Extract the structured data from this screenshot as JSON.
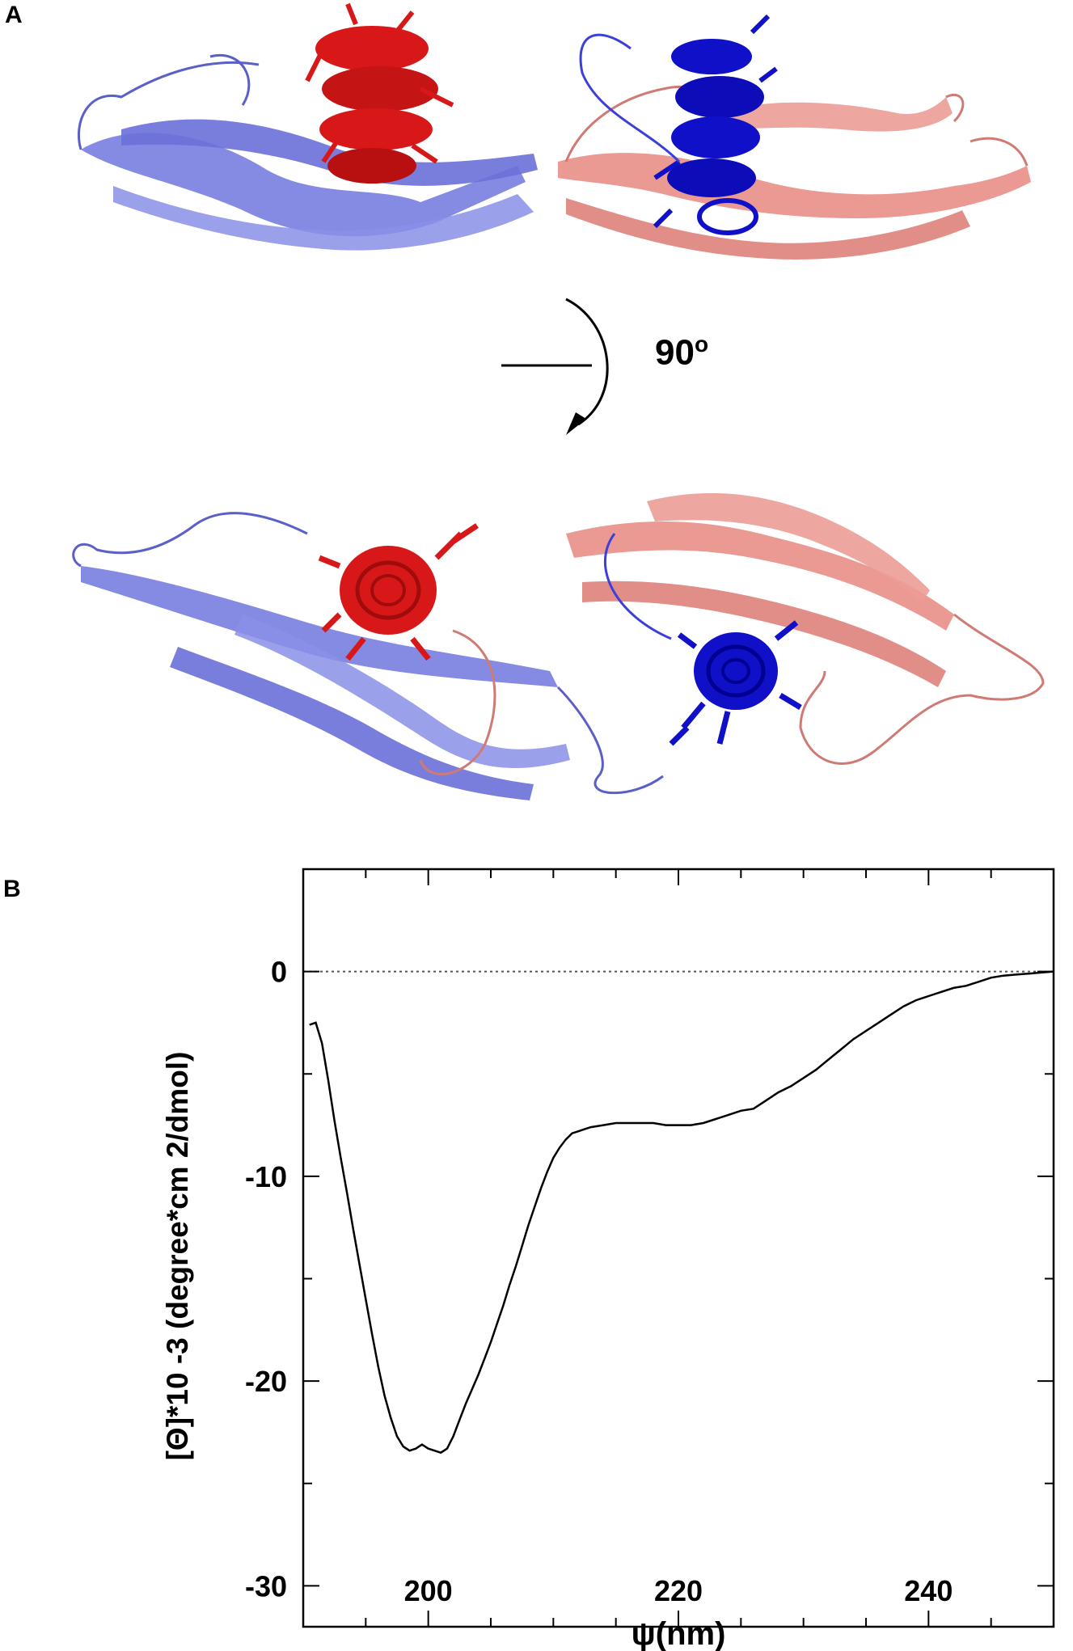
{
  "panels": {
    "a_label": "A",
    "b_label": "B"
  },
  "structure": {
    "rotation_value": "90",
    "rotation_unit": "o",
    "colors": {
      "chain1_sheet": "#7b80e0",
      "chain1_helix": "#d81818",
      "chain2_sheet": "#e8908a",
      "chain2_helix": "#1010c8"
    }
  },
  "chart_data": {
    "type": "line",
    "xlabel": "ψ(nm)",
    "ylabel": "[Θ]*10 -3 (degree*cm 2/dmol)",
    "xlim": [
      190,
      250
    ],
    "ylim": [
      -32,
      5
    ],
    "xticks": [
      200,
      220,
      240
    ],
    "yticks": [
      0,
      -10,
      -20,
      -30
    ],
    "zero_line": true,
    "grid": false,
    "line_color": "#000000",
    "series": [
      {
        "x": [
          190.5,
          191.0,
          191.5,
          192.0,
          192.5,
          193.0,
          193.5,
          194.0,
          194.5,
          195.0,
          195.5,
          196.0,
          196.5,
          197.0,
          197.5,
          198.0,
          198.5,
          199.0,
          199.5,
          200.0,
          200.5,
          201.0,
          201.5,
          202.0,
          202.5,
          203.0,
          203.5,
          204.0,
          204.5,
          205.0,
          205.5,
          206.0,
          206.5,
          207.0,
          207.5,
          208.0,
          208.5,
          209.0,
          209.5,
          210.0,
          210.5,
          211.0,
          211.5,
          212.0,
          212.5,
          213.0,
          214.0,
          215.0,
          216.0,
          217.0,
          218.0,
          219.0,
          220.0,
          221.0,
          222.0,
          223.0,
          224.0,
          225.0,
          226.0,
          227.0,
          228.0,
          229.0,
          230.0,
          231.0,
          232.0,
          233.0,
          234.0,
          235.0,
          236.0,
          237.0,
          238.0,
          239.0,
          240.0,
          241.0,
          242.0,
          243.0,
          244.0,
          245.0,
          246.0,
          247.0,
          248.0,
          249.0,
          250.0
        ],
        "y": [
          -2.6,
          -2.5,
          -3.5,
          -5.3,
          -7.3,
          -9.1,
          -10.8,
          -12.6,
          -14.3,
          -16.0,
          -17.7,
          -19.3,
          -20.7,
          -21.8,
          -22.7,
          -23.2,
          -23.4,
          -23.3,
          -23.1,
          -23.3,
          -23.4,
          -23.5,
          -23.3,
          -22.7,
          -21.9,
          -21.1,
          -20.4,
          -19.7,
          -18.9,
          -18.1,
          -17.2,
          -16.3,
          -15.3,
          -14.4,
          -13.4,
          -12.4,
          -11.5,
          -10.6,
          -9.8,
          -9.1,
          -8.6,
          -8.2,
          -7.9,
          -7.8,
          -7.7,
          -7.6,
          -7.5,
          -7.4,
          -7.4,
          -7.4,
          -7.4,
          -7.5,
          -7.5,
          -7.5,
          -7.4,
          -7.2,
          -7.0,
          -6.8,
          -6.7,
          -6.3,
          -5.9,
          -5.6,
          -5.2,
          -4.8,
          -4.3,
          -3.8,
          -3.3,
          -2.9,
          -2.5,
          -2.1,
          -1.7,
          -1.4,
          -1.2,
          -1.0,
          -0.8,
          -0.7,
          -0.5,
          -0.3,
          -0.2,
          -0.15,
          -0.1,
          -0.05,
          0.0
        ]
      }
    ]
  }
}
